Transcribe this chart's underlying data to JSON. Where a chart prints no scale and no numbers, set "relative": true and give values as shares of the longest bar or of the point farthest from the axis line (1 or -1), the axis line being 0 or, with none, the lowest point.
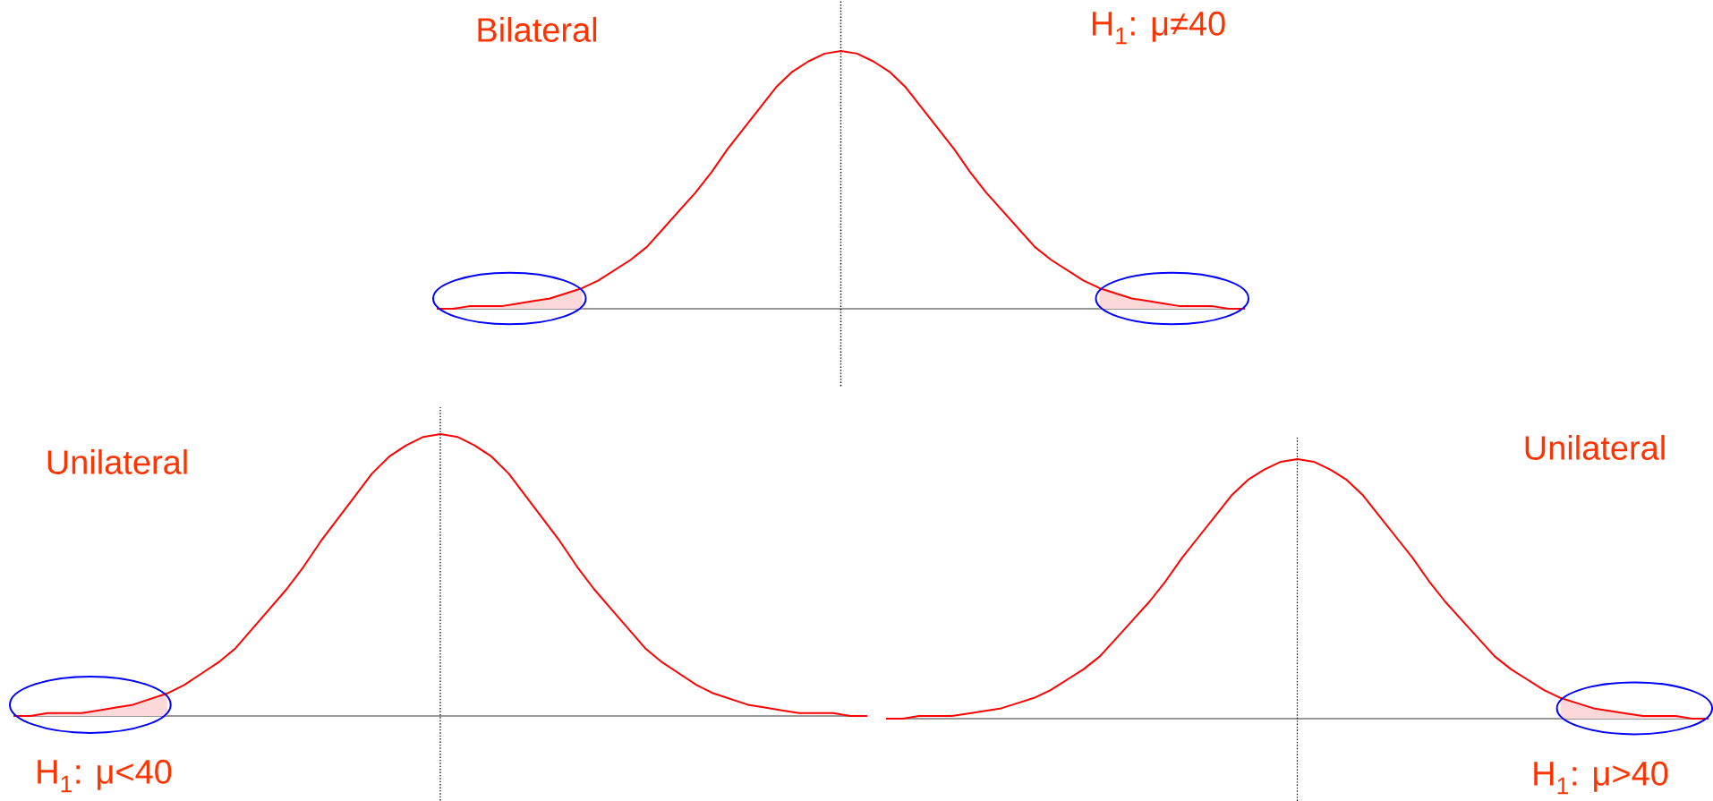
{
  "chart_data": [
    {
      "type": "line",
      "relative": true,
      "annotations": [
        "Bilateral",
        "H$_{1}$: μ≠40"
      ],
      "categories": [
        null,
        null,
        null,
        null,
        null,
        null,
        null,
        null,
        null,
        null,
        null,
        null,
        null,
        null,
        null,
        null,
        null,
        null,
        null,
        null,
        null,
        null,
        null,
        null,
        null,
        null,
        null,
        null,
        null,
        null,
        null,
        null,
        null,
        null,
        null,
        null,
        null,
        null,
        null,
        null,
        null,
        null,
        null,
        null,
        null,
        null,
        null,
        null,
        null,
        null,
        null
      ],
      "series": [
        {
          "color": "#ff0000",
          "values": [
            0,
            0,
            0.01,
            0.01,
            0.01,
            0.02,
            0.03,
            0.04,
            0.06,
            0.08,
            0.11,
            0.15,
            0.19,
            0.24,
            0.31,
            0.38,
            0.45,
            0.53,
            0.62,
            0.7,
            0.78,
            0.86,
            0.92,
            0.96,
            0.99,
            1,
            0.99,
            0.96,
            0.92,
            0.86,
            0.78,
            0.7,
            0.62,
            0.53,
            0.45,
            0.38,
            0.31,
            0.24,
            0.19,
            0.15,
            0.11,
            0.08,
            0.06,
            0.04,
            0.03,
            0.02,
            0.01,
            0.01,
            0.01,
            0,
            0
          ]
        },
        {
          "type": "area",
          "color": "#fdd8d8",
          "values": [
            0,
            0,
            0.01,
            0.01,
            0.01,
            0.02,
            0.03,
            0.04,
            0.06,
            0.08,
            null,
            null,
            null,
            null,
            null,
            null,
            null,
            null,
            null,
            null,
            null,
            null,
            null,
            null,
            null,
            null,
            null,
            null,
            null,
            null,
            null,
            null,
            null,
            null,
            null,
            null,
            null,
            null,
            null,
            null,
            null,
            null,
            null,
            null,
            null,
            null,
            null,
            null,
            null,
            null,
            null
          ]
        },
        {
          "type": "area",
          "color": "#fdd8d8",
          "values": [
            null,
            null,
            null,
            null,
            null,
            null,
            null,
            null,
            null,
            null,
            null,
            null,
            null,
            null,
            null,
            null,
            null,
            null,
            null,
            null,
            null,
            null,
            null,
            null,
            null,
            null,
            null,
            null,
            null,
            null,
            null,
            null,
            null,
            null,
            null,
            null,
            null,
            null,
            null,
            null,
            null,
            0.08,
            0.06,
            0.04,
            0.03,
            0.02,
            0.01,
            0.01,
            0.01,
            0,
            0
          ]
        }
      ]
    },
    {
      "type": "line",
      "relative": true,
      "annotations": [
        "Unilateral",
        "H$_{1}$: μ<40"
      ],
      "categories": [
        null,
        null,
        null,
        null,
        null,
        null,
        null,
        null,
        null,
        null,
        null,
        null,
        null,
        null,
        null,
        null,
        null,
        null,
        null,
        null,
        null,
        null,
        null,
        null,
        null,
        null,
        null,
        null,
        null,
        null,
        null,
        null,
        null,
        null,
        null,
        null,
        null,
        null,
        null,
        null,
        null,
        null,
        null,
        null,
        null,
        null,
        null,
        null,
        null,
        null,
        null
      ],
      "series": [
        {
          "color": "#ff0000",
          "values": [
            0,
            0,
            0.01,
            0.01,
            0.01,
            0.02,
            0.03,
            0.04,
            0.06,
            0.08,
            0.11,
            0.15,
            0.19,
            0.24,
            0.31,
            0.38,
            0.45,
            0.53,
            0.62,
            0.7,
            0.78,
            0.86,
            0.92,
            0.96,
            0.99,
            1,
            0.99,
            0.96,
            0.92,
            0.86,
            0.78,
            0.7,
            0.62,
            0.53,
            0.45,
            0.38,
            0.31,
            0.24,
            0.19,
            0.15,
            0.11,
            0.08,
            0.06,
            0.04,
            0.03,
            0.02,
            0.01,
            0.01,
            0.01,
            0,
            0
          ]
        },
        {
          "type": "area",
          "color": "#fdd8d8",
          "values": [
            0,
            0,
            0.01,
            0.01,
            0.01,
            0.02,
            0.03,
            0.04,
            0.06,
            0.08,
            null,
            null,
            null,
            null,
            null,
            null,
            null,
            null,
            null,
            null,
            null,
            null,
            null,
            null,
            null,
            null,
            null,
            null,
            null,
            null,
            null,
            null,
            null,
            null,
            null,
            null,
            null,
            null,
            null,
            null,
            null,
            null,
            null,
            null,
            null,
            null,
            null,
            null,
            null,
            null,
            null
          ]
        }
      ]
    },
    {
      "type": "line",
      "relative": true,
      "annotations": [
        "Unilateral",
        "H$_{1}$: μ>40"
      ],
      "categories": [
        null,
        null,
        null,
        null,
        null,
        null,
        null,
        null,
        null,
        null,
        null,
        null,
        null,
        null,
        null,
        null,
        null,
        null,
        null,
        null,
        null,
        null,
        null,
        null,
        null,
        null,
        null,
        null,
        null,
        null,
        null,
        null,
        null,
        null,
        null,
        null,
        null,
        null,
        null,
        null,
        null,
        null,
        null,
        null,
        null,
        null,
        null,
        null,
        null,
        null,
        null
      ],
      "series": [
        {
          "color": "#ff0000",
          "values": [
            0,
            0,
            0.01,
            0.01,
            0.01,
            0.02,
            0.03,
            0.04,
            0.06,
            0.08,
            0.11,
            0.15,
            0.19,
            0.24,
            0.31,
            0.38,
            0.45,
            0.53,
            0.62,
            0.7,
            0.78,
            0.86,
            0.92,
            0.96,
            0.99,
            1,
            0.99,
            0.96,
            0.92,
            0.86,
            0.78,
            0.7,
            0.62,
            0.53,
            0.45,
            0.38,
            0.31,
            0.24,
            0.19,
            0.15,
            0.11,
            0.08,
            0.06,
            0.04,
            0.03,
            0.02,
            0.01,
            0.01,
            0.01,
            0,
            0
          ]
        },
        {
          "type": "area",
          "color": "#fdd8d8",
          "values": [
            null,
            null,
            null,
            null,
            null,
            null,
            null,
            null,
            null,
            null,
            null,
            null,
            null,
            null,
            null,
            null,
            null,
            null,
            null,
            null,
            null,
            null,
            null,
            null,
            null,
            null,
            null,
            null,
            null,
            null,
            null,
            null,
            null,
            null,
            null,
            null,
            null,
            null,
            null,
            null,
            null,
            0.08,
            0.06,
            0.04,
            0.03,
            0.02,
            0.01,
            0.01,
            0.01,
            0,
            0
          ]
        }
      ]
    }
  ]
}
